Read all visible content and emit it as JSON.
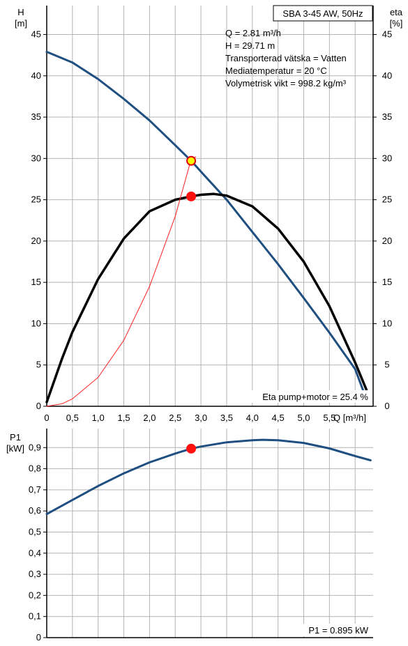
{
  "title": "SBA 3-45 AW, 50Hz",
  "info_lines": [
    "Q = 2.81 m³/h",
    "H = 29.71 m",
    "Transporterad vätska = Vatten",
    "Mediatemperatur = 20 °C",
    "Volymetrisk vikt = 998.2 kg/m³"
  ],
  "eta_note": "Eta pump+motor = 25.4 %",
  "p1_note": "P1 = 0.895 kW",
  "chart_data": [
    {
      "type": "line",
      "y_left_label": "H",
      "y_left_unit": "[m]",
      "y_right_label": "eta",
      "y_right_unit": "[%]",
      "x_label": "Q [m³/h]",
      "xlim": [
        0,
        6.35
      ],
      "ylim": [
        0,
        48.5
      ],
      "x_ticks": [
        "0",
        "0,5",
        "1,0",
        "1,5",
        "2,0",
        "2,5",
        "3,0",
        "3,5",
        "4,0",
        "4,5",
        "5,0",
        "5,5"
      ],
      "x_tick_values": [
        0,
        0.5,
        1.0,
        1.5,
        2.0,
        2.5,
        3.0,
        3.5,
        4.0,
        4.5,
        5.0,
        5.5
      ],
      "y_ticks": [
        "0",
        "5",
        "10",
        "15",
        "20",
        "25",
        "30",
        "35",
        "40",
        "45"
      ],
      "y_tick_values": [
        0,
        5,
        10,
        15,
        20,
        25,
        30,
        35,
        40,
        45
      ],
      "x_grid_values": [
        0.5,
        1.0,
        1.5,
        2.0,
        2.5,
        3.0,
        3.5,
        4.0,
        4.5,
        5.0,
        5.5,
        6.0
      ],
      "grid": true,
      "series": [
        {
          "role": "head",
          "color": "#1f4e80",
          "x": [
            0,
            0.5,
            1.0,
            1.5,
            2.0,
            2.5,
            2.81,
            3.0,
            3.5,
            4.0,
            4.5,
            5.0,
            5.5,
            6.0,
            6.15
          ],
          "y": [
            42.9,
            41.6,
            39.6,
            37.2,
            34.6,
            31.6,
            29.71,
            28.4,
            25.0,
            21.1,
            17.2,
            13.1,
            8.9,
            4.5,
            2.0
          ]
        },
        {
          "role": "efficiency",
          "color": "#000000",
          "x": [
            0,
            0.3,
            0.5,
            1.0,
            1.5,
            2.0,
            2.5,
            2.81,
            3.0,
            3.25,
            3.5,
            4.0,
            4.5,
            5.0,
            5.5,
            6.0,
            6.22
          ],
          "y": [
            0.5,
            5.8,
            9.0,
            15.4,
            20.3,
            23.6,
            25.0,
            25.4,
            25.6,
            25.7,
            25.5,
            24.2,
            21.5,
            17.5,
            12.1,
            5.3,
            2.0
          ]
        },
        {
          "role": "npsh",
          "color": "#ff2020",
          "x": [
            0,
            0.3,
            0.5,
            1.0,
            1.5,
            2.0,
            2.5,
            2.81,
            2.9
          ],
          "y": [
            0,
            0.3,
            0.9,
            3.5,
            8.0,
            14.5,
            23.0,
            29.9,
            30.2
          ]
        }
      ],
      "duty_points": [
        {
          "x": 2.81,
          "y": 29.71,
          "color": "#ffff00",
          "stroke": "#e00000"
        },
        {
          "x": 2.81,
          "y": 25.4,
          "color": "#ff1010",
          "stroke": "#ff1010"
        }
      ]
    },
    {
      "type": "line",
      "y_label": "P1",
      "y_unit": "[kW]",
      "xlim": [
        0,
        6.35
      ],
      "ylim": [
        0,
        0.99
      ],
      "y_ticks": [
        "0",
        "0,1",
        "0,2",
        "0,3",
        "0,4",
        "0,5",
        "0,6",
        "0,7",
        "0,8",
        "0,9"
      ],
      "y_tick_values": [
        0,
        0.1,
        0.2,
        0.3,
        0.4,
        0.5,
        0.6,
        0.7,
        0.8,
        0.9
      ],
      "x_grid_values": [
        0.5,
        1.0,
        1.5,
        2.0,
        2.5,
        3.0,
        3.5,
        4.0,
        4.5,
        5.0,
        5.5,
        6.0
      ],
      "grid": true,
      "series": [
        {
          "role": "power",
          "color": "#1f4e80",
          "x": [
            0,
            0.5,
            1.0,
            1.5,
            2.0,
            2.5,
            2.81,
            3.0,
            3.5,
            4.0,
            4.2,
            4.5,
            5.0,
            5.5,
            6.0,
            6.3
          ],
          "y": [
            0.585,
            0.652,
            0.718,
            0.778,
            0.83,
            0.872,
            0.895,
            0.905,
            0.925,
            0.935,
            0.937,
            0.935,
            0.922,
            0.896,
            0.86,
            0.84
          ]
        }
      ],
      "duty_points": [
        {
          "x": 2.81,
          "y": 0.895,
          "color": "#ff1010",
          "stroke": "#ff1010"
        }
      ]
    }
  ]
}
